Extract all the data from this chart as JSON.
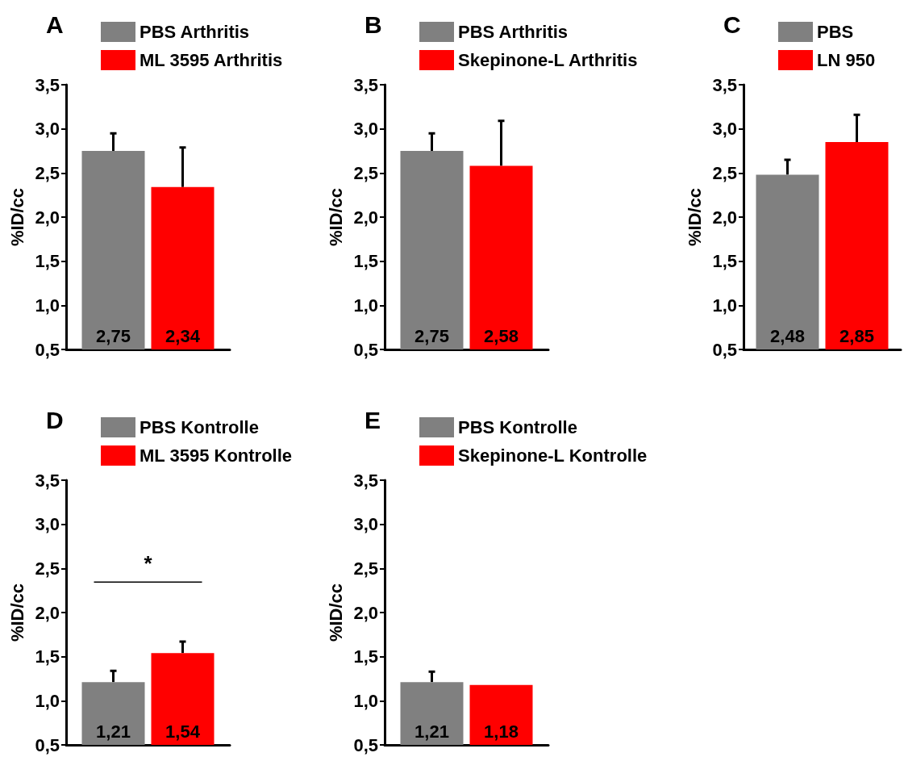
{
  "chart_data": [
    {
      "type": "bar",
      "title": "A",
      "ylabel": "%ID/cc",
      "categories": [
        null
      ],
      "legend": "top",
      "ylim": [
        0.5,
        3.5
      ],
      "yticks": [
        {
          "value": 0.5,
          "label": "0,5"
        },
        {
          "value": 1.0,
          "label": "1,0"
        },
        {
          "value": 1.5,
          "label": "1,5"
        },
        {
          "value": 2.0,
          "label": "2,0"
        },
        {
          "value": 2.5,
          "label": "2,5"
        },
        {
          "value": 3.0,
          "label": "3,0"
        },
        {
          "value": 3.5,
          "label": "3,5"
        }
      ],
      "series": [
        {
          "name": "PBS Arthritis",
          "color": "#808080",
          "values": [
            2.75
          ],
          "errors": [
            [
              2.75,
              2.95
            ]
          ],
          "value_labels": [
            "2,75"
          ]
        },
        {
          "name": "ML 3595 Arthritis",
          "color": "#ff0000",
          "values": [
            2.34
          ],
          "errors": [
            [
              2.34,
              2.79
            ]
          ],
          "value_labels": [
            "2,34"
          ]
        }
      ]
    },
    {
      "type": "bar",
      "title": "B",
      "ylabel": "%ID/cc",
      "categories": [
        null
      ],
      "legend": "top",
      "ylim": [
        0.5,
        3.5
      ],
      "yticks": [
        {
          "value": 0.5,
          "label": "0,5"
        },
        {
          "value": 1.0,
          "label": "1,0"
        },
        {
          "value": 1.5,
          "label": "1,5"
        },
        {
          "value": 2.0,
          "label": "2,0"
        },
        {
          "value": 2.5,
          "label": "2,5"
        },
        {
          "value": 3.0,
          "label": "3,0"
        },
        {
          "value": 3.5,
          "label": "3,5"
        }
      ],
      "series": [
        {
          "name": "PBS Arthritis",
          "color": "#808080",
          "values": [
            2.75
          ],
          "errors": [
            [
              2.75,
              2.95
            ]
          ],
          "value_labels": [
            "2,75"
          ]
        },
        {
          "name": "Skepinone-L Arthritis",
          "color": "#ff0000",
          "values": [
            2.58
          ],
          "errors": [
            [
              2.58,
              3.09
            ]
          ],
          "value_labels": [
            "2,58"
          ]
        }
      ]
    },
    {
      "type": "bar",
      "title": "C",
      "ylabel": "%ID/cc",
      "categories": [
        null
      ],
      "legend": "top",
      "ylim": [
        0.5,
        3.5
      ],
      "yticks": [
        {
          "value": 0.5,
          "label": "0,5"
        },
        {
          "value": 1.0,
          "label": "1,0"
        },
        {
          "value": 1.5,
          "label": "1,5"
        },
        {
          "value": 2.0,
          "label": "2,0"
        },
        {
          "value": 2.5,
          "label": "2,5"
        },
        {
          "value": 3.0,
          "label": "3,0"
        },
        {
          "value": 3.5,
          "label": "3,5"
        }
      ],
      "series": [
        {
          "name": "PBS",
          "color": "#808080",
          "values": [
            2.48
          ],
          "errors": [
            [
              2.48,
              2.65
            ]
          ],
          "value_labels": [
            "2,48"
          ]
        },
        {
          "name": "LN 950",
          "color": "#ff0000",
          "values": [
            2.85
          ],
          "errors": [
            [
              2.85,
              3.16
            ]
          ],
          "value_labels": [
            "2,85"
          ]
        }
      ]
    },
    {
      "type": "bar",
      "title": "D",
      "ylabel": "%ID/cc",
      "categories": [
        null
      ],
      "legend": "top",
      "annotations": [
        "*"
      ],
      "ylim": [
        0.5,
        3.5
      ],
      "yticks": [
        {
          "value": 0.5,
          "label": "0,5"
        },
        {
          "value": 1.0,
          "label": "1,0"
        },
        {
          "value": 1.5,
          "label": "1,5"
        },
        {
          "value": 2.0,
          "label": "2,0"
        },
        {
          "value": 2.5,
          "label": "2,5"
        },
        {
          "value": 3.0,
          "label": "3,0"
        },
        {
          "value": 3.5,
          "label": "3,5"
        }
      ],
      "series": [
        {
          "name": "PBS Kontrolle",
          "color": "#808080",
          "values": [
            1.21
          ],
          "errors": [
            [
              1.21,
              1.34
            ]
          ],
          "value_labels": [
            "1,21"
          ]
        },
        {
          "name": "ML 3595 Kontrolle",
          "color": "#ff0000",
          "values": [
            1.54
          ],
          "errors": [
            [
              1.54,
              1.67
            ]
          ],
          "value_labels": [
            "1,54"
          ]
        }
      ]
    },
    {
      "type": "bar",
      "title": "E",
      "ylabel": "%ID/cc",
      "categories": [
        null
      ],
      "legend": "top",
      "ylim": [
        0.5,
        3.5
      ],
      "yticks": [
        {
          "value": 0.5,
          "label": "0,5"
        },
        {
          "value": 1.0,
          "label": "1,0"
        },
        {
          "value": 1.5,
          "label": "1,5"
        },
        {
          "value": 2.0,
          "label": "2,0"
        },
        {
          "value": 2.5,
          "label": "2,5"
        },
        {
          "value": 3.0,
          "label": "3,0"
        },
        {
          "value": 3.5,
          "label": "3,5"
        }
      ],
      "series": [
        {
          "name": "PBS Kontrolle",
          "color": "#808080",
          "values": [
            1.21
          ],
          "errors": [
            [
              1.21,
              1.33
            ]
          ],
          "value_labels": [
            "1,21"
          ]
        },
        {
          "name": "Skepinone-L Kontrolle",
          "color": "#ff0000",
          "values": [
            1.18
          ],
          "errors": [
            null
          ],
          "value_labels": [
            "1,18"
          ]
        }
      ]
    }
  ]
}
